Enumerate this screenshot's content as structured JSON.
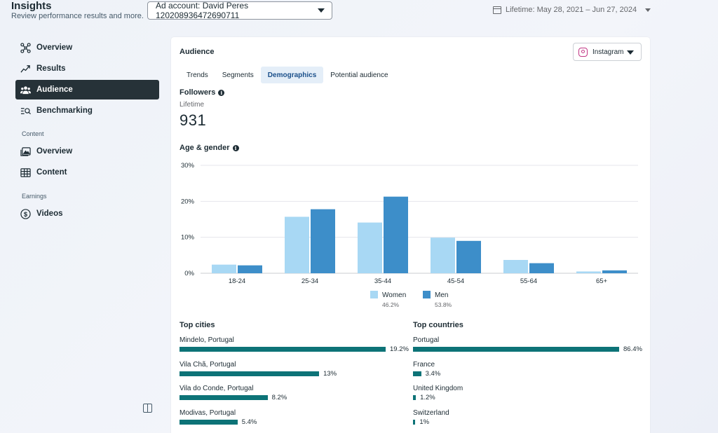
{
  "header": {
    "title": "Insights",
    "subtitle": "Review performance results and more.",
    "ad_account": "Ad account: David Peres 120208936472690711",
    "date_range": "Lifetime: May 28, 2021 – Jun 27, 2024"
  },
  "sidebar": {
    "items": [
      {
        "label": "Overview",
        "icon": "nodes-icon"
      },
      {
        "label": "Results",
        "icon": "trend-icon"
      },
      {
        "label": "Audience",
        "icon": "people-icon",
        "active": true
      },
      {
        "label": "Benchmarking",
        "icon": "benchmark-icon"
      }
    ],
    "content_section": "Content",
    "content_items": [
      {
        "label": "Overview",
        "icon": "gallery-icon"
      },
      {
        "label": "Content",
        "icon": "table-icon"
      }
    ],
    "earnings_section": "Earnings",
    "earnings_items": [
      {
        "label": "Videos",
        "icon": "dollar-icon"
      }
    ]
  },
  "card": {
    "title": "Audience",
    "platform": "Instagram",
    "tabs": [
      "Trends",
      "Segments",
      "Demographics",
      "Potential audience"
    ],
    "active_tab": "Demographics",
    "followers_label": "Followers",
    "followers_period": "Lifetime",
    "followers_count": "931",
    "age_gender_label": "Age & gender"
  },
  "chart_data": {
    "type": "bar",
    "categories": [
      "18-24",
      "25-34",
      "35-44",
      "45-54",
      "55-64",
      "65+"
    ],
    "series": [
      {
        "name": "Women",
        "color": "#a8d8f4",
        "values": [
          2.4,
          15.7,
          14.1,
          9.9,
          3.7,
          0.5
        ],
        "share": "46.2%"
      },
      {
        "name": "Men",
        "color": "#3d8ec9",
        "values": [
          2.2,
          17.8,
          21.3,
          9.0,
          2.8,
          0.8
        ],
        "share": "53.8%"
      }
    ],
    "y_ticks": [
      "0%",
      "10%",
      "20%",
      "30%"
    ],
    "ylim": [
      0,
      30
    ],
    "grid": true,
    "legend": "bottom-center"
  },
  "top_cities": {
    "title": "Top cities",
    "items": [
      {
        "label": "Mindelo, Portugal",
        "value": 19.2,
        "value_label": "19.2%"
      },
      {
        "label": "Vila Chã, Portugal",
        "value": 13,
        "value_label": "13%"
      },
      {
        "label": "Vila do Conde, Portugal",
        "value": 8.2,
        "value_label": "8.2%"
      },
      {
        "label": "Modivas, Portugal",
        "value": 5.4,
        "value_label": "5.4%"
      }
    ]
  },
  "top_countries": {
    "title": "Top countries",
    "items": [
      {
        "label": "Portugal",
        "value": 86.4,
        "value_label": "86.4%"
      },
      {
        "label": "France",
        "value": 3.4,
        "value_label": "3.4%"
      },
      {
        "label": "United Kingdom",
        "value": 1.2,
        "value_label": "1.2%"
      },
      {
        "label": "Switzerland",
        "value": 1,
        "value_label": "1%"
      }
    ]
  }
}
